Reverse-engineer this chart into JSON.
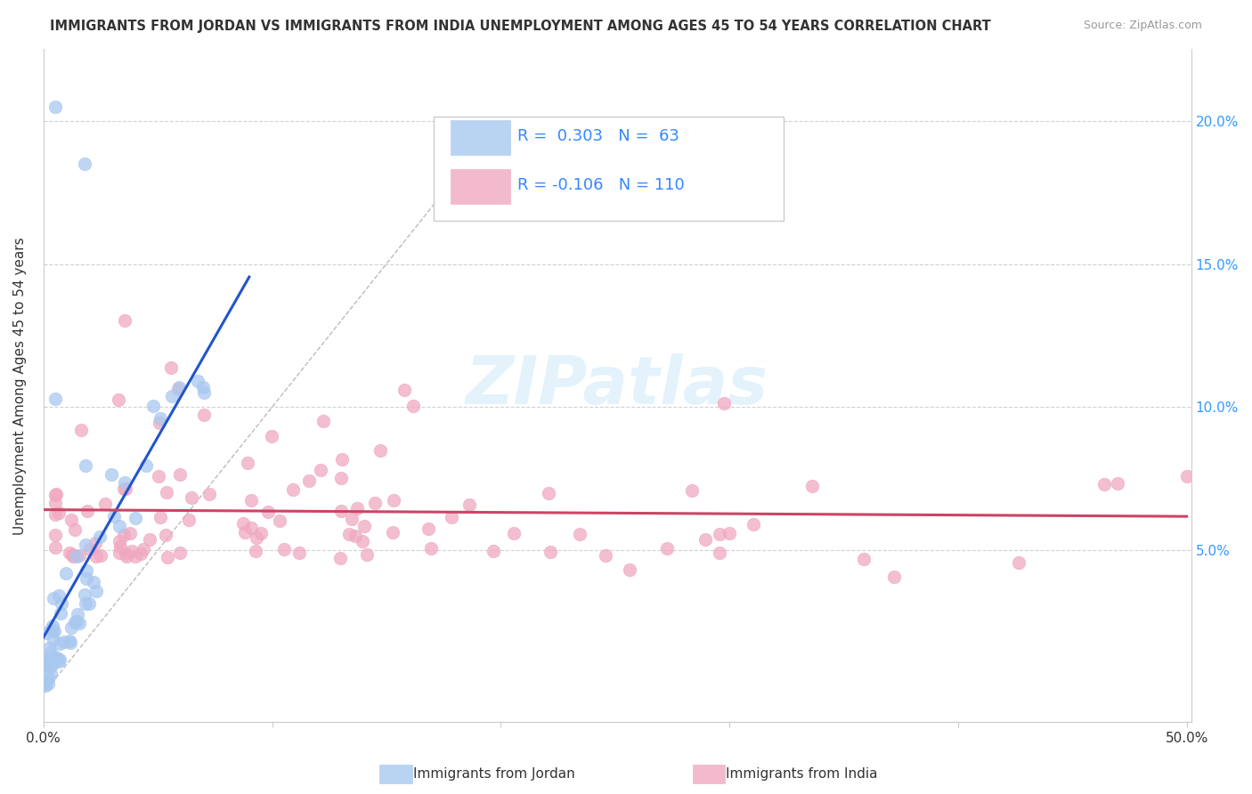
{
  "title": "IMMIGRANTS FROM JORDAN VS IMMIGRANTS FROM INDIA UNEMPLOYMENT AMONG AGES 45 TO 54 YEARS CORRELATION CHART",
  "source": "Source: ZipAtlas.com",
  "ylabel": "Unemployment Among Ages 45 to 54 years",
  "jordan_color": "#a8c8f0",
  "india_color": "#f0a8c0",
  "jordan_line_color": "#2255cc",
  "india_line_color": "#cc4466",
  "ytick_positions": [
    0.0,
    0.05,
    0.1,
    0.15,
    0.2
  ],
  "ytick_labels": [
    "",
    "5.0%",
    "10.0%",
    "15.0%",
    "20.0%"
  ],
  "xtick_positions": [
    0.0,
    0.1,
    0.2,
    0.3,
    0.4,
    0.5
  ],
  "xtick_labels": [
    "0.0%",
    "",
    "",
    "",
    "",
    "50.0%"
  ],
  "xlim": [
    0.0,
    0.502
  ],
  "ylim": [
    -0.01,
    0.225
  ],
  "n_jordan": 63,
  "n_india": 110,
  "r_jordan": 0.303,
  "r_india": -0.106,
  "legend_label_jordan": "Immigrants from Jordan",
  "legend_label_india": "Immigrants from India"
}
